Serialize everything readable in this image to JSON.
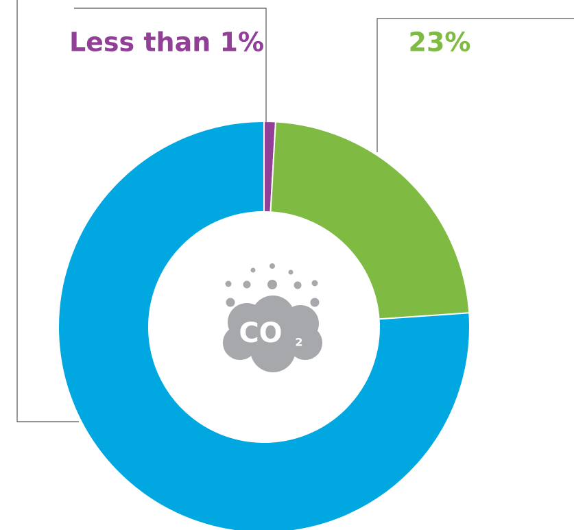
{
  "chart_data": {
    "type": "donut",
    "values": [
      0.9,
      23,
      76.1
    ],
    "value_labels": [
      "Less than 1%",
      "23%",
      null
    ],
    "colors": [
      "#923f98",
      "#7fba42",
      "#00a7e1"
    ],
    "center_label": {
      "main": "CO",
      "subscript": "2"
    }
  }
}
